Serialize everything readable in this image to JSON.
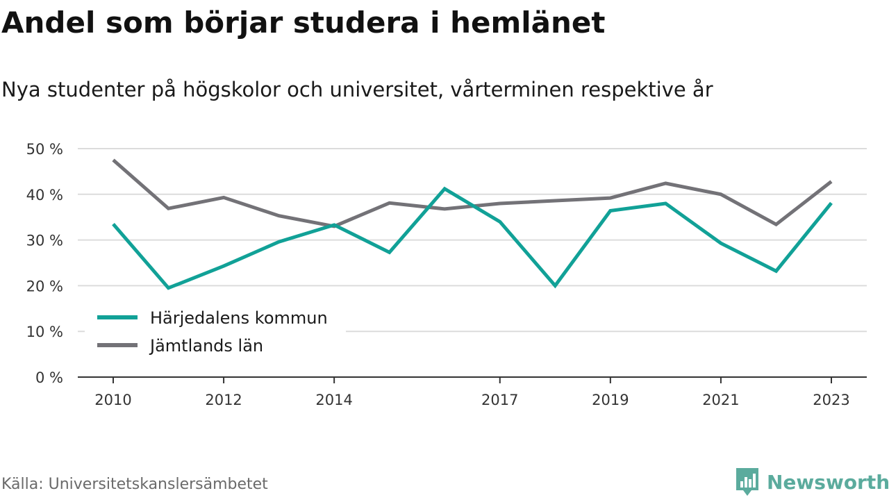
{
  "header": {
    "title": "Andel som börjar studera i hemlänet",
    "subtitle": "Nya studenter på högskolor och universitet, vårterminen respektive år"
  },
  "footer": {
    "source": "Källa: Universitetskanslersämbetet",
    "brand": "Newsworthy",
    "brand_icon": "bar-chart-speech-bubble-icon",
    "brand_color": "#5bab9d"
  },
  "chart_data": {
    "type": "line",
    "x": [
      2010,
      2011,
      2012,
      2013,
      2014,
      2015,
      2016,
      2017,
      2018,
      2019,
      2020,
      2021,
      2022,
      2023
    ],
    "x_tick_values": [
      2010,
      2012,
      2014,
      2017,
      2019,
      2021,
      2023
    ],
    "x_tick_labels": [
      "2010",
      "2012",
      "2014",
      "2017",
      "2019",
      "2021",
      "2023"
    ],
    "y_tick_values": [
      0,
      10,
      20,
      30,
      40,
      50
    ],
    "y_tick_labels": [
      "0 %",
      "10 %",
      "20 %",
      "30 %",
      "40 %",
      "50 %"
    ],
    "ylim": [
      0,
      50
    ],
    "xlim": [
      2010,
      2023
    ],
    "grid": true,
    "legend_position": "bottom-left",
    "series": [
      {
        "name": "Härjedalens kommun",
        "color": "#11a197",
        "values": [
          33.5,
          19.5,
          24.3,
          29.6,
          33.3,
          27.3,
          41.2,
          34.0,
          20.0,
          36.4,
          38.0,
          29.3,
          23.2,
          38.1
        ]
      },
      {
        "name": "Jämtlands län",
        "color": "#737277",
        "values": [
          47.5,
          36.9,
          39.3,
          35.3,
          33.0,
          38.1,
          36.8,
          38.0,
          38.6,
          39.2,
          42.4,
          40.0,
          33.4,
          42.8
        ]
      }
    ]
  }
}
